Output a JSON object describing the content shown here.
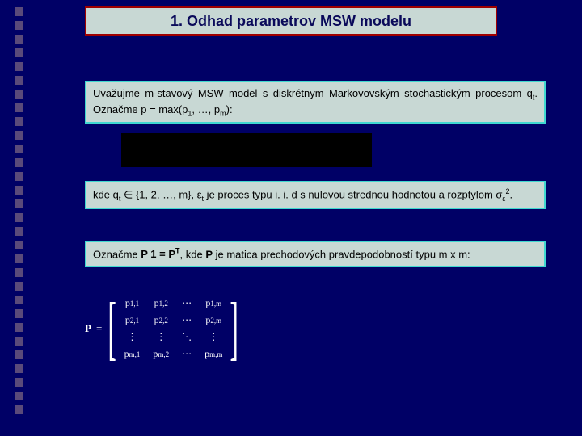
{
  "colors": {
    "slide_bg": "#000066",
    "decor_square": "#5a4a7a",
    "title_box_bg": "#c8d8d4",
    "title_box_border": "#a00000",
    "title_text_color": "#0a0a5a",
    "text_box_bg": "#c8d8d4",
    "text_box_border": "#40d8d0",
    "text_color": "#000000",
    "black_bar": "#000000",
    "matrix_color": "#ffffff"
  },
  "title": "1. Odhad parametrov MSW modelu",
  "para1_a": "Uvažujme m-stavový MSW model s diskrétnym Markovovským stochastickým procesom q",
  "para1_b": ". Označme p = max(p",
  "para1_c": ", …, p",
  "para1_d": "):",
  "sub_t": "t",
  "sub_1": "1",
  "sub_m": "m",
  "para2_a": "kde q",
  "para2_b": " ∈ {1, 2, …, m}, ε",
  "para2_c": " je proces typu i. i. d s nulovou strednou hodnotou a rozptylom σ",
  "para2_d": ".",
  "sub_eps": "ε",
  "sup_2": "2",
  "para3_a": "Označme ",
  "para3_b": "P 1 = P",
  "para3_c": ", kde ",
  "para3_d": "P",
  "para3_e": " je matica prechodových pravdepodobností typu m x m:",
  "sup_T": "T",
  "matrix": {
    "label": "P",
    "eq": "=",
    "rows": [
      [
        "p<span class=\"msub\">1,1</span>",
        "p<span class=\"msub\">1,2</span>",
        "⋯",
        "p<span class=\"msub\">1,m</span>"
      ],
      [
        "p<span class=\"msub\">2,1</span>",
        "p<span class=\"msub\">2,2</span>",
        "⋯",
        "p<span class=\"msub\">2,m</span>"
      ],
      [
        "⋮",
        "⋮",
        "⋱",
        "⋮"
      ],
      [
        "p<span class=\"msub\">m,1</span>",
        "p<span class=\"msub\">m,2</span>",
        "⋯",
        "p<span class=\"msub\">m,m</span>"
      ]
    ]
  },
  "decor_count": 30
}
